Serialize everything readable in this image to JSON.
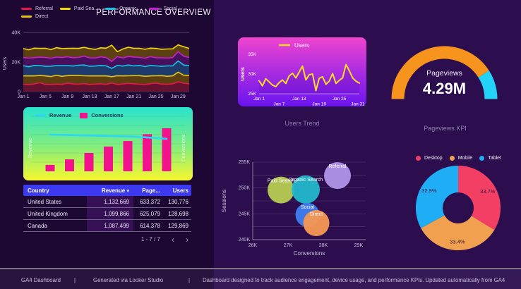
{
  "header": {
    "title": "PERFORMANCE OVERVIEW"
  },
  "footer": {
    "brand": "GA4 Dashboard",
    "separator": "|",
    "source": "Generated via Looker Studio",
    "description": "Dashboard designed to track audience engagement, device usage, and performance KPIs. Updated automatically from GA4"
  },
  "table": {
    "columns": [
      "Country",
      "Revenue",
      "Page...",
      "Users"
    ],
    "sort_indicator": "▾",
    "rows": [
      [
        "United States",
        "1,132,669",
        "633,372",
        "130,776"
      ],
      [
        "United Kingdom",
        "1,099,866",
        "625,079",
        "128,698"
      ],
      [
        "Canada",
        "1,087,499",
        "614,378",
        "129,869"
      ]
    ],
    "pagination": "1 - 7 / 7",
    "prev_glyph": "‹",
    "next_glyph": "›"
  },
  "chart_data": [
    {
      "id": "traffic-by-channel",
      "type": "area",
      "stacked": true,
      "units": "thousands of users per day, Jan 1 - Jan 31",
      "ylabel": "Users",
      "ylim": [
        0,
        40
      ],
      "y_ticks": [
        "0",
        "20K",
        "40K"
      ],
      "x_ticks": [
        "Jan 1",
        "Jan 5",
        "Jan 9",
        "Jan 13",
        "Jan 17",
        "Jan 21",
        "Jan 25",
        "Jan 29"
      ],
      "legend": [
        {
          "label": "Referral",
          "color": "#e8174b"
        },
        {
          "label": "Paid Sea...",
          "color": "#f5d905"
        },
        {
          "label": "Organic ...",
          "color": "#18c3e8"
        },
        {
          "label": "Social",
          "color": "#cb1bd6"
        },
        {
          "label": "Direct",
          "color": "#e3c419"
        }
      ],
      "series": [
        {
          "name": "Referral",
          "color": "#e8174b",
          "fill": "#63122f",
          "values": [
            5.0,
            4.6,
            5.3,
            6.0,
            4.9,
            4.7,
            5.1,
            4.8,
            5.8,
            5.2,
            5.0,
            5.4,
            4.8,
            5.1,
            5.3,
            4.9,
            5.9,
            4.8,
            5.2,
            5.6,
            5.3,
            5.0,
            4.8,
            5.4,
            5.8,
            5.1,
            4.9,
            5.3,
            6.6,
            5.7,
            5.2
          ]
        },
        {
          "name": "Direct",
          "color": "#e3c419",
          "fill": "#5c4012",
          "values": [
            5.6,
            6.0,
            5.3,
            4.9,
            5.7,
            5.5,
            5.9,
            5.6,
            5.0,
            5.7,
            5.9,
            5.3,
            5.8,
            5.5,
            5.3,
            5.7,
            4.2,
            5.9,
            5.4,
            5.1,
            5.5,
            5.8,
            5.6,
            5.2,
            4.9,
            5.7,
            5.5,
            5.3,
            6.6,
            5.4,
            5.7
          ]
        },
        {
          "name": "Organic ...",
          "color": "#18c3e8",
          "fill": "#1d3a6b",
          "values": [
            6.9,
            6.2,
            7.1,
            6.7,
            6.5,
            7.0,
            6.6,
            7.2,
            6.8,
            6.4,
            6.9,
            7.3,
            6.5,
            6.7,
            7.1,
            6.8,
            5.6,
            7.0,
            6.7,
            7.3,
            6.6,
            6.9,
            6.5,
            7.1,
            6.7,
            6.3,
            7.0,
            6.8,
            7.5,
            6.9,
            6.6
          ]
        },
        {
          "name": "Social",
          "color": "#cb1bd6",
          "fill": "#46105c",
          "values": [
            5.5,
            5.9,
            5.3,
            5.7,
            6.0,
            5.4,
            5.8,
            5.5,
            5.9,
            5.6,
            5.3,
            6.0,
            5.7,
            5.4,
            5.8,
            5.6,
            4.7,
            5.9,
            5.5,
            5.7,
            6.0,
            5.4,
            5.7,
            5.9,
            5.5,
            5.8,
            5.3,
            5.6,
            6.3,
            5.9,
            5.6
          ]
        },
        {
          "name": "Paid Sea...",
          "color": "#f5d905",
          "fill": "#5c4012",
          "values": [
            6.1,
            5.6,
            6.4,
            5.9,
            6.2,
            5.8,
            6.3,
            6.0,
            5.7,
            6.4,
            6.1,
            5.9,
            6.3,
            5.8,
            6.1,
            6.4,
            11.0,
            3.4,
            6.0,
            6.3,
            5.9,
            6.2,
            6.0,
            5.8,
            6.3,
            5.7,
            6.1,
            5.9,
            4.6,
            6.5,
            6.1
          ]
        }
      ]
    },
    {
      "id": "revenue-vs-conversions",
      "type": "bar+line",
      "units": "relative scale 0-100 (no numeric axis shown)",
      "left_axis_label": "Revenue",
      "right_axis_label": "Conversions",
      "legend": [
        {
          "label": "Revenue",
          "color": "#2bd7f7",
          "shape": "line"
        },
        {
          "label": "Conversions",
          "color": "#f2128c",
          "shape": "box"
        }
      ],
      "bars": [
        14,
        26,
        40,
        54,
        66,
        81,
        94
      ],
      "line": [
        80,
        79,
        78,
        77,
        76,
        74,
        71
      ]
    },
    {
      "id": "users-trend",
      "type": "line",
      "title": "Users Trend",
      "units": "thousands of users per day, Jan 1 - Jan 31",
      "ylabel": "Users",
      "ylim": [
        25,
        35
      ],
      "y_ticks": [
        "25K",
        "30K",
        "35K"
      ],
      "x_ticks_row1": [
        "Jan 1",
        "Jan 13",
        "Jan 25"
      ],
      "x_ticks_row2": [
        "Jan 7",
        "Jan 19",
        "Jan 31"
      ],
      "legend": [
        {
          "label": "Users",
          "color": "#ffdf1f"
        }
      ],
      "values": [
        28.3,
        27.0,
        28.8,
        28.0,
        27.2,
        26.8,
        27.8,
        28.5,
        27.6,
        29.5,
        30.2,
        29.0,
        30.5,
        32.0,
        28.5,
        29.8,
        30.0,
        25.8,
        28.9,
        29.3,
        27.4,
        28.2,
        30.1,
        27.6,
        28.4,
        29.0,
        32.4,
        30.8,
        29.0,
        28.2,
        27.7
      ]
    },
    {
      "id": "pageviews-kpi",
      "type": "gauge",
      "title": "Pageviews KPI",
      "metric_label": "Pageviews",
      "value": "4.29M",
      "fraction": 0.82,
      "color_main": "#f7941d",
      "color_rest": "#22d3f7"
    },
    {
      "id": "sessions-vs-conversions",
      "type": "scatter",
      "xlabel": "Conversions",
      "ylabel": "Sessions",
      "xlim": [
        26,
        29
      ],
      "ylim": [
        240,
        255
      ],
      "units": "K",
      "x_ticks": [
        "26K",
        "27K",
        "28K",
        "29K"
      ],
      "y_ticks": [
        "240K",
        "245K",
        "250K",
        "255K"
      ],
      "points": [
        {
          "label": "Paid Search",
          "x": 26.8,
          "y": 249.6,
          "r": 19,
          "color": "#b6cc52"
        },
        {
          "label": "Organic Search",
          "x": 27.5,
          "y": 249.7,
          "r": 20,
          "color": "#22b8cc"
        },
        {
          "label": "Referral",
          "x": 28.4,
          "y": 252.4,
          "r": 19,
          "color": "#b095e8"
        },
        {
          "label": "Social",
          "x": 27.55,
          "y": 244.8,
          "r": 17,
          "color": "#3f7ef2"
        },
        {
          "label": "Direct",
          "x": 27.8,
          "y": 243.2,
          "r": 18.5,
          "color": "#f79853"
        }
      ]
    },
    {
      "id": "device-category",
      "type": "pie",
      "slices": [
        {
          "label": "Desktop",
          "value": 33.7,
          "display": "33.7%",
          "color": "#f43f65"
        },
        {
          "label": "Mobile",
          "value": 33.4,
          "display": "33.4%",
          "color": "#f0a04f"
        },
        {
          "label": "Tablet",
          "value": 32.9,
          "display": "32.9%",
          "color": "#1fadf5"
        }
      ]
    }
  ]
}
